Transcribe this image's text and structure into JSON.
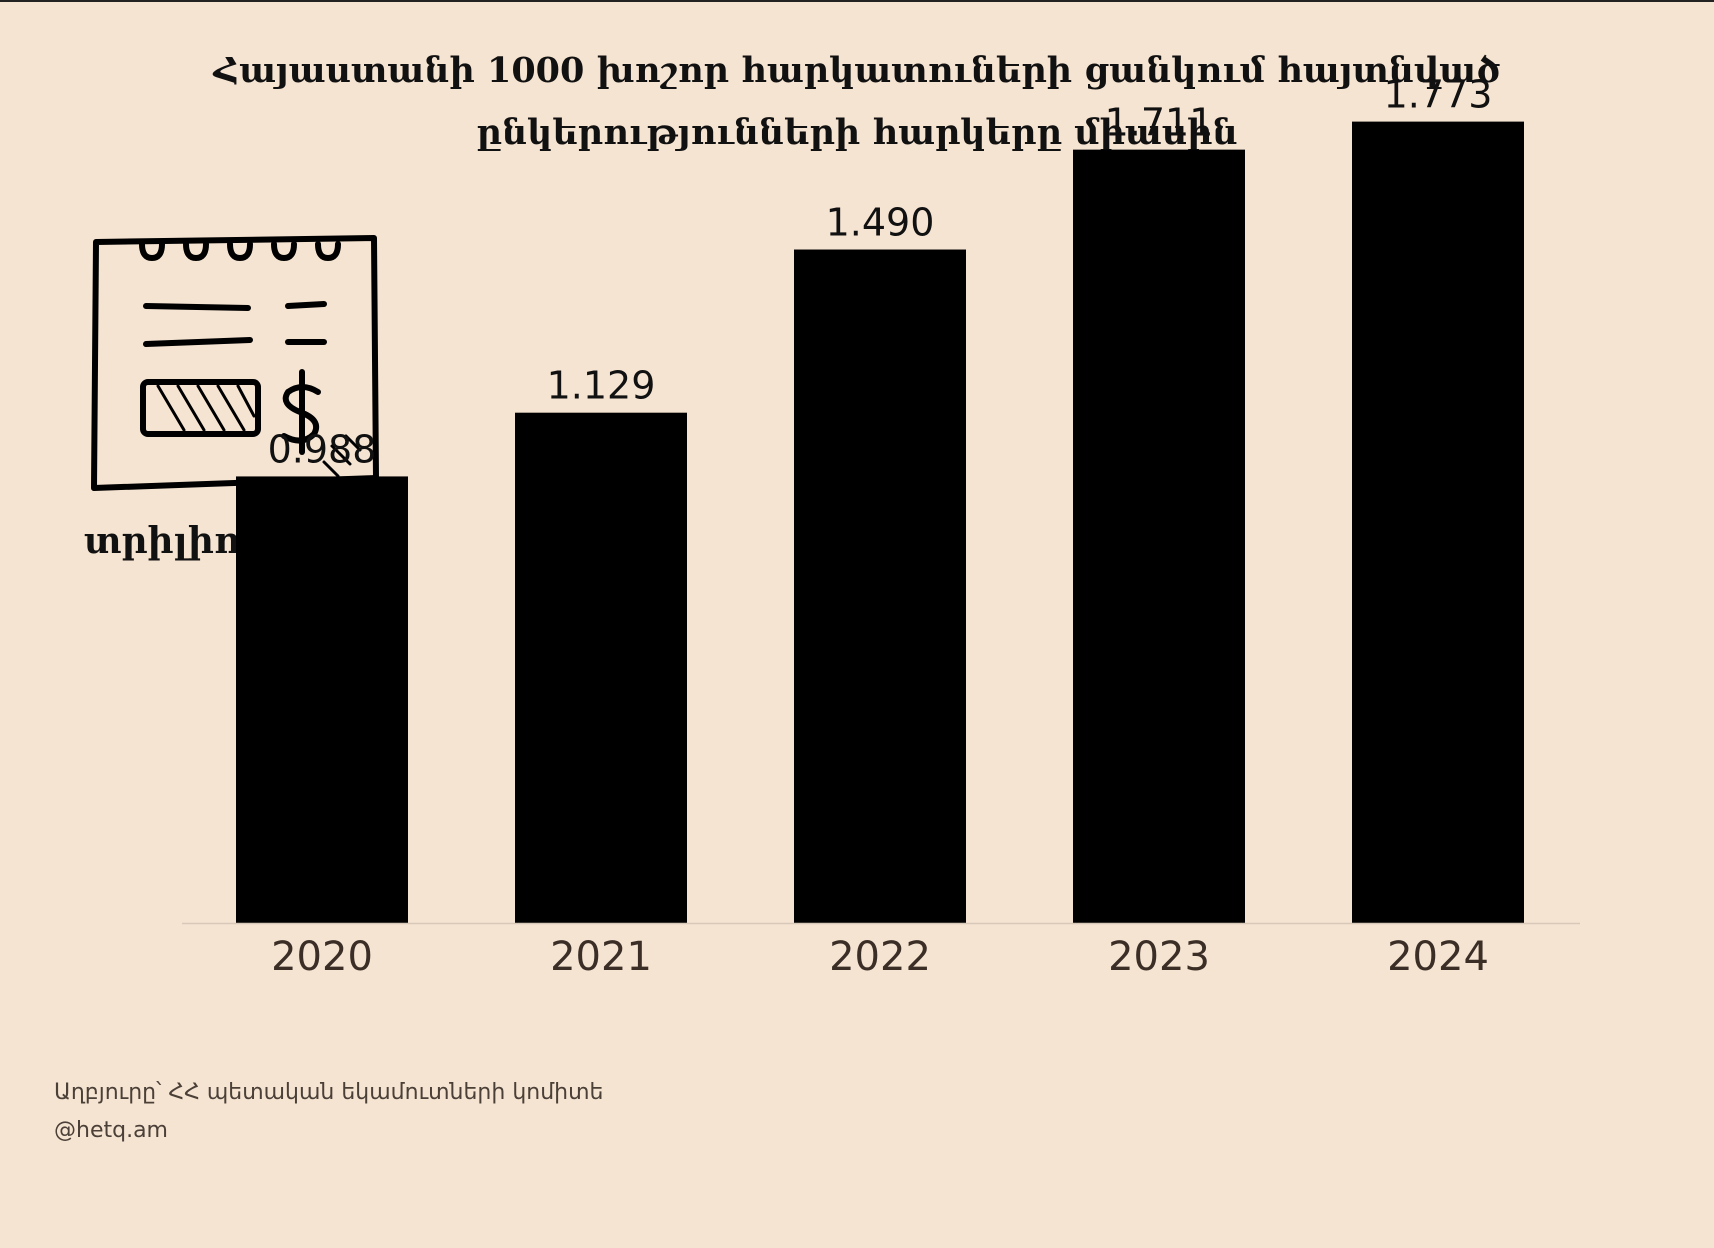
{
  "header": {
    "title_line1": "Հայաստանի 1000 խոշոր հարկատուների ցանկում հայտնված",
    "title_line2": "ընկերությունների հարկերը միասին"
  },
  "chart_data": {
    "type": "bar",
    "categories": [
      "2020",
      "2021",
      "2022",
      "2023",
      "2024"
    ],
    "values": [
      0.988,
      1.129,
      1.49,
      1.711,
      1.773
    ],
    "value_labels": [
      "0.988",
      "1.129",
      "1.490",
      "1.711",
      "1.773"
    ],
    "unit_label": "տրիլիոն դրամ",
    "title": "Հայաստանի 1000 խոշոր հարկատուների ցանկում հայտնված ընկերությունների հարկերը միասին",
    "ylim": [
      0,
      2.0
    ],
    "grid": false,
    "legend": "none",
    "colors": {
      "bar": "#000000",
      "background": "#f6e4d2",
      "axis": "#d8c8b8",
      "tick_text": "#3a2e26"
    }
  },
  "icon": {
    "name": "receipt-dollar-icon"
  },
  "footer": {
    "source": "Աղբյուրը՝ ՀՀ պետական եկամուտների կոմիտե",
    "handle": "@hetq.am"
  }
}
